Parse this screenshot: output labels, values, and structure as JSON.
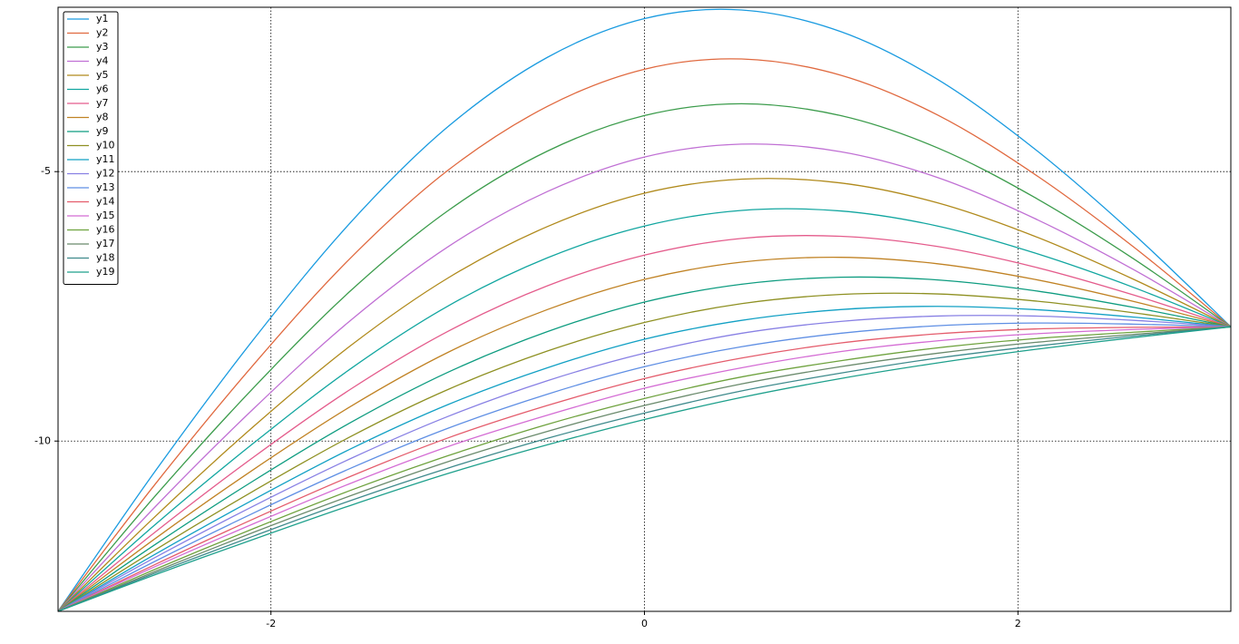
{
  "chart_data": {
    "type": "line",
    "x": [
      -3.14,
      -2.62,
      -2.09,
      -1.57,
      -1.05,
      -0.52,
      0,
      0.52,
      1.05,
      1.57,
      2.09,
      2.62,
      3.14
    ],
    "xlim": [
      -3.14,
      3.14
    ],
    "ylim": [
      -13.16,
      -1.95
    ],
    "xticks": [
      -2,
      0,
      2
    ],
    "yticks": [
      -5,
      -10
    ],
    "grid": true,
    "legend": "upper left",
    "series": [
      {
        "name": "y1",
        "color": "#1a9be0",
        "values": [
          -13.16,
          -10.56,
          -8.1,
          -5.93,
          -4.16,
          -2.88,
          -2.16,
          -2.0,
          -2.4,
          -3.29,
          -4.58,
          -6.16,
          -7.88
        ]
      },
      {
        "name": "y2",
        "color": "#e0693f",
        "values": [
          -13.16,
          -10.8,
          -8.57,
          -6.59,
          -4.97,
          -3.79,
          -3.1,
          -2.91,
          -3.21,
          -3.95,
          -5.05,
          -6.4,
          -7.88
        ]
      },
      {
        "name": "y3",
        "color": "#3c9c4c",
        "values": [
          -13.16,
          -11.02,
          -9.0,
          -7.2,
          -5.72,
          -4.62,
          -3.96,
          -3.74,
          -3.96,
          -4.56,
          -5.48,
          -6.62,
          -7.88
        ]
      },
      {
        "name": "y4",
        "color": "#c070d4",
        "values": [
          -13.16,
          -11.22,
          -9.39,
          -7.75,
          -6.39,
          -5.37,
          -4.73,
          -4.49,
          -4.63,
          -5.11,
          -5.87,
          -6.82,
          -7.88
        ]
      },
      {
        "name": "y5",
        "color": "#b08a1c",
        "values": [
          -13.16,
          -11.4,
          -9.72,
          -8.22,
          -6.97,
          -6.02,
          -5.4,
          -5.14,
          -5.21,
          -5.58,
          -6.2,
          -7.0,
          -7.88
        ]
      },
      {
        "name": "y6",
        "color": "#12a6a0",
        "values": [
          -13.16,
          -11.55,
          -10.03,
          -8.65,
          -7.49,
          -6.6,
          -6.01,
          -5.72,
          -5.73,
          -6.01,
          -6.51,
          -7.15,
          -7.88
        ]
      },
      {
        "name": "y7",
        "color": "#e45c8c",
        "values": [
          -13.16,
          -11.69,
          -10.29,
          -9.03,
          -7.96,
          -7.12,
          -6.55,
          -6.24,
          -6.2,
          -6.39,
          -6.77,
          -7.29,
          -7.88
        ]
      },
      {
        "name": "y8",
        "color": "#c08224",
        "values": [
          -13.16,
          -11.81,
          -10.52,
          -9.35,
          -8.35,
          -7.56,
          -7.0,
          -6.68,
          -6.59,
          -6.71,
          -7.0,
          -7.41,
          -7.88
        ]
      },
      {
        "name": "y9",
        "color": "#0e9c80",
        "values": [
          -13.16,
          -11.92,
          -10.73,
          -9.65,
          -8.72,
          -7.97,
          -7.42,
          -7.09,
          -6.96,
          -7.01,
          -7.21,
          -7.52,
          -7.88
        ]
      },
      {
        "name": "y10",
        "color": "#8e9022",
        "values": [
          -13.16,
          -12.02,
          -10.92,
          -9.91,
          -9.04,
          -8.33,
          -7.8,
          -7.45,
          -7.28,
          -7.27,
          -7.4,
          -7.62,
          -7.88
        ]
      },
      {
        "name": "y11",
        "color": "#12a0c4",
        "values": [
          -13.16,
          -12.1,
          -11.08,
          -10.14,
          -9.32,
          -8.64,
          -8.11,
          -7.76,
          -7.56,
          -7.5,
          -7.56,
          -7.7,
          -7.88
        ]
      },
      {
        "name": "y12",
        "color": "#8880e4",
        "values": [
          -13.16,
          -12.16,
          -11.2,
          -10.32,
          -9.54,
          -8.88,
          -8.37,
          -8.0,
          -7.78,
          -7.68,
          -7.68,
          -7.76,
          -7.88
        ]
      },
      {
        "name": "y13",
        "color": "#5f8fe4",
        "values": [
          -13.16,
          -12.23,
          -11.33,
          -10.5,
          -9.76,
          -9.13,
          -8.62,
          -8.25,
          -8.0,
          -7.86,
          -7.81,
          -7.83,
          -7.88
        ]
      },
      {
        "name": "y14",
        "color": "#e45c6c",
        "values": [
          -13.16,
          -12.29,
          -11.44,
          -10.65,
          -9.94,
          -9.34,
          -8.84,
          -8.46,
          -8.18,
          -8.01,
          -7.92,
          -7.89,
          -7.88
        ]
      },
      {
        "name": "y15",
        "color": "#d46cd4",
        "values": [
          -13.16,
          -12.33,
          -11.53,
          -10.78,
          -10.1,
          -9.52,
          -9.02,
          -8.64,
          -8.34,
          -8.14,
          -8.01,
          -7.93,
          -7.88
        ]
      },
      {
        "name": "y16",
        "color": "#6ea23e",
        "values": [
          -13.16,
          -12.38,
          -11.62,
          -10.91,
          -10.27,
          -9.69,
          -9.21,
          -8.81,
          -8.51,
          -8.27,
          -8.1,
          -7.98,
          -7.88
        ]
      },
      {
        "name": "y17",
        "color": "#6a8a6c",
        "values": [
          -13.16,
          -12.42,
          -11.69,
          -11.01,
          -10.38,
          -9.82,
          -9.34,
          -8.94,
          -8.62,
          -8.37,
          -8.17,
          -8.02,
          -7.88
        ]
      },
      {
        "name": "y18",
        "color": "#3e8a8c",
        "values": [
          -13.16,
          -12.45,
          -11.76,
          -11.1,
          -10.5,
          -9.95,
          -9.48,
          -9.07,
          -8.74,
          -8.46,
          -8.24,
          -8.05,
          -7.88
        ]
      },
      {
        "name": "y19",
        "color": "#1ea08c",
        "values": [
          -13.16,
          -12.48,
          -11.82,
          -11.19,
          -10.6,
          -10.07,
          -9.6,
          -9.19,
          -8.84,
          -8.55,
          -8.3,
          -8.08,
          -7.88
        ]
      }
    ]
  }
}
